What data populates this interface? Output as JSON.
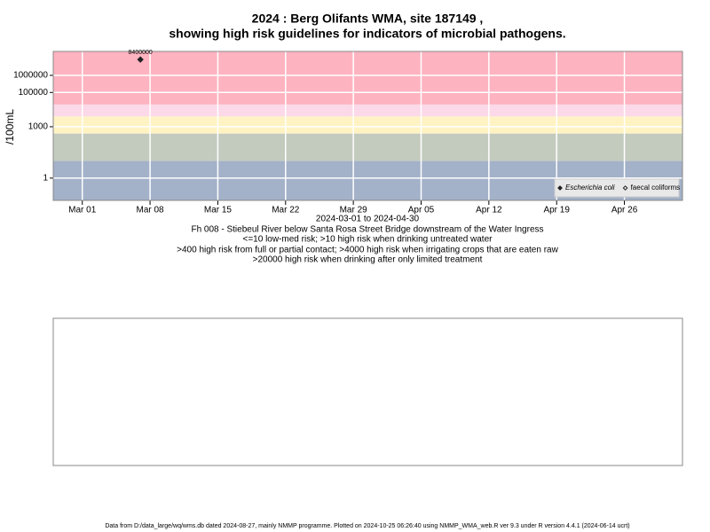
{
  "chart_data": {
    "type": "scatter",
    "title": "2024 : Berg Olifants WMA, site 187149 ,",
    "subtitle": "showing high risk guidelines for indicators of microbial pathogens.",
    "ylabel": "/100mL",
    "xlabel": "2024-03-01 to 2024-04-30",
    "notes": [
      "Fh 008 - Stiebeul River below Santa Rosa Street Bridge downstream of the Water Ingress",
      "<=10 low-med risk; >10 high risk when drinking untreated water",
      ">400 high risk from full or partial contact; >4000 high risk when irrigating crops that are eaten raw",
      ">20000 high risk when drinking after only limited treatment"
    ],
    "log_y": true,
    "grid": true,
    "legend_position": "bottom-right",
    "xlim": [
      "2024-02-27",
      "2024-05-02"
    ],
    "ylim": [
      0.05,
      25000000
    ],
    "xticks": [
      {
        "value": "2024-03-01",
        "label": "Mar 01"
      },
      {
        "value": "2024-03-08",
        "label": "Mar 08"
      },
      {
        "value": "2024-03-15",
        "label": "Mar 15"
      },
      {
        "value": "2024-03-22",
        "label": "Mar 22"
      },
      {
        "value": "2024-03-29",
        "label": "Mar 29"
      },
      {
        "value": "2024-04-05",
        "label": "Apr 05"
      },
      {
        "value": "2024-04-12",
        "label": "Apr 12"
      },
      {
        "value": "2024-04-19",
        "label": "Apr 19"
      },
      {
        "value": "2024-04-26",
        "label": "Apr 26"
      }
    ],
    "yticks": [
      1,
      1000,
      100000,
      1000000
    ],
    "risk_bands": [
      {
        "from": 0.05,
        "to": 10,
        "color": "#a3b1c9"
      },
      {
        "from": 10,
        "to": 400,
        "color": "#c3cbbf"
      },
      {
        "from": 400,
        "to": 4000,
        "color": "#fff3c4"
      },
      {
        "from": 4000,
        "to": 20000,
        "color": "#fcd9e8"
      },
      {
        "from": 20000,
        "to": 25000000,
        "color": "#feb3c0"
      }
    ],
    "series": [
      {
        "name": "Escherichia coli",
        "color": "#222222",
        "marker": "filled",
        "x": [
          "2024-03-07"
        ],
        "values": [
          8400000
        ]
      },
      {
        "name": "faecal coliforms",
        "color": "#222222",
        "marker": "open",
        "x": [],
        "values": []
      }
    ],
    "footer": "Data from D:/data_large/wq/wms.db dated 2024-08-27, mainly NMMP programme. Plotted on 2024-10-25 06:26:40 using NMMP_WMA_web.R ver 9.3 under R version 4.4.1 (2024-06-14 ucrt)"
  }
}
